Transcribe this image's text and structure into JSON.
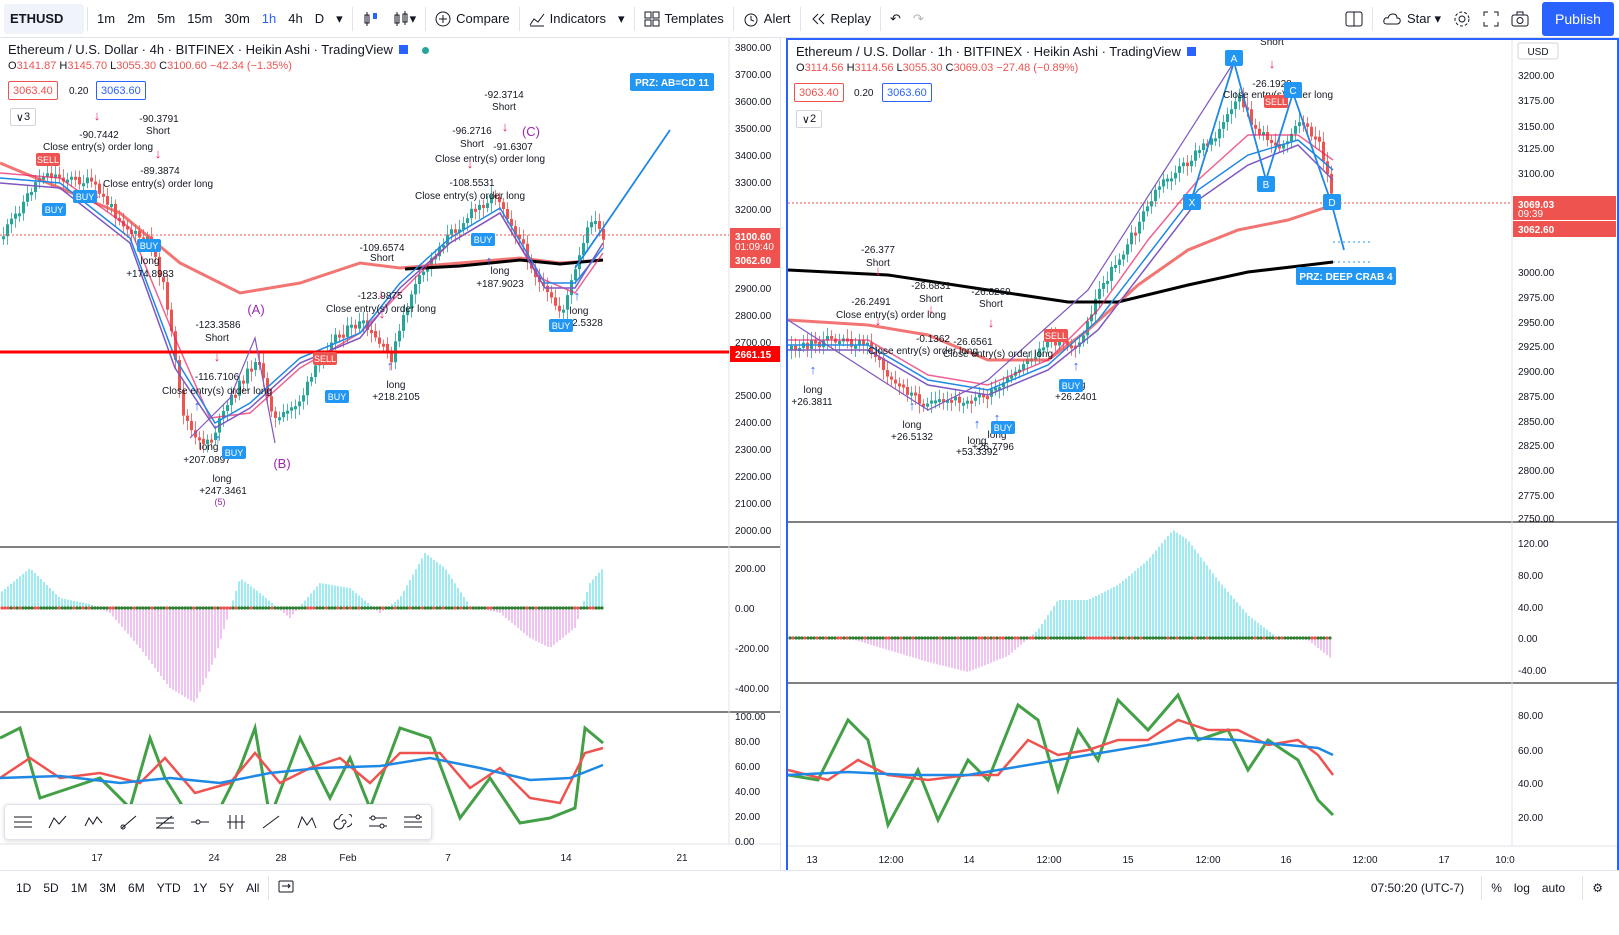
{
  "toolbar": {
    "symbol": "ETHUSD",
    "intervals": [
      "1m",
      "2m",
      "5m",
      "15m",
      "30m",
      "1h",
      "4h",
      "D"
    ],
    "active_interval": "1h",
    "compare": "Compare",
    "indicators": "Indicators",
    "templates": "Templates",
    "alert": "Alert",
    "replay": "Replay",
    "star": "Star",
    "publish": "Publish"
  },
  "left_chart": {
    "title": "Ethereum / U.S. Dollar · 4h · BITFINEX · Heikin Ashi · TradingView",
    "ohlc": {
      "o": "3141.87",
      "h": "3145.70",
      "l": "3055.30",
      "c": "3100.60",
      "chg": "−42.34 (−1.35%)"
    },
    "bid": "3063.40",
    "spread": "0.20",
    "ask": "3063.60",
    "count": "3",
    "price_axis": [
      "3800.00",
      "3700.00",
      "3600.00",
      "3500.00",
      "3400.00",
      "3300.00",
      "3200.00",
      "3100.60",
      "3062.60",
      "2900.00",
      "2800.00",
      "2700.00",
      "2661.15",
      "2500.00",
      "2400.00",
      "2300.00",
      "2200.00",
      "2100.00",
      "2000.00"
    ],
    "last_price": "3100.60",
    "countdown": "01:09:40",
    "ask_line": "3062.60",
    "hline_price": "2661.15",
    "osc_axis": [
      "200.00",
      "0.00",
      "-200.00",
      "-400.00"
    ],
    "rsi_axis": [
      "100.00",
      "80.00",
      "60.00",
      "40.00",
      "20.00",
      "0.00"
    ],
    "time_axis": [
      "17",
      "24",
      "28",
      "Feb",
      "7",
      "14",
      "21"
    ],
    "prz_label": "PRZ: AB=CD 11",
    "wave_labels": [
      "(A)",
      "(B)",
      "(C)",
      "(5)"
    ],
    "annotations": [
      {
        "text": "-90.7442"
      },
      {
        "text": "-90.3791"
      },
      {
        "text": "Short"
      },
      {
        "text": "Close entry(s) order long"
      },
      {
        "text": "-89.3874"
      },
      {
        "text": "Close entry(s) order long"
      },
      {
        "text": "long"
      },
      {
        "text": "+174.8983"
      },
      {
        "text": "-123.3586"
      },
      {
        "text": "Short"
      },
      {
        "text": "-116.7106"
      },
      {
        "text": "Close entry(s) order long"
      },
      {
        "text": "long"
      },
      {
        "text": "+207.0897"
      },
      {
        "text": "long"
      },
      {
        "text": "+247.3461"
      },
      {
        "text": "-109.6574"
      },
      {
        "text": "Short"
      },
      {
        "text": "-123.9875"
      },
      {
        "text": "Close entry(s) order long"
      },
      {
        "text": "long"
      },
      {
        "text": "+218.2105"
      },
      {
        "text": "-92.3714"
      },
      {
        "text": "Short"
      },
      {
        "text": "-96.2716"
      },
      {
        "text": "Short"
      },
      {
        "text": "-91.6307"
      },
      {
        "text": "Close entry(s) order long"
      },
      {
        "text": "-108.5531"
      },
      {
        "text": "Close entry(s) order long"
      },
      {
        "text": "long"
      },
      {
        "text": "+187.9023"
      },
      {
        "text": "long"
      },
      {
        "text": "+192.5328"
      }
    ],
    "signals": [
      "SELL",
      "BUY",
      "BUY",
      "BUY",
      "BUY",
      "SELL",
      "BUY",
      "BUY",
      "BUY"
    ]
  },
  "right_chart": {
    "title": "Ethereum / U.S. Dollar · 1h · BITFINEX · Heikin Ashi · TradingView",
    "ohlc": {
      "o": "3114.56",
      "h": "3114.56",
      "l": "3055.30",
      "c": "3069.03",
      "chg": "−27.48 (−0.89%)"
    },
    "bid": "3063.40",
    "spread": "0.20",
    "ask": "3063.60",
    "count": "2",
    "currency": "USD",
    "price_axis": [
      "3200.00",
      "3175.00",
      "3150.00",
      "3125.00",
      "3100.00",
      "3069.03",
      "3062.60",
      "3000.00",
      "2975.00",
      "2950.00",
      "2925.00",
      "2900.00",
      "2875.00",
      "2850.00",
      "2825.00",
      "2800.00",
      "2775.00",
      "2750.00"
    ],
    "last_price": "3069.03",
    "countdown": "09:39",
    "ask_line": "3062.60",
    "osc_axis": [
      "120.00",
      "80.00",
      "40.00",
      "0.00",
      "-40.00"
    ],
    "rsi_axis": [
      "80.00",
      "60.00",
      "40.00",
      "20.00"
    ],
    "time_axis": [
      "13",
      "12:00",
      "14",
      "12:00",
      "15",
      "12:00",
      "16",
      "12:00",
      "17",
      "10:0"
    ],
    "prz_label": "PRZ: DEEP CRAB 4",
    "points": [
      "X",
      "A",
      "B",
      "C",
      "D"
    ],
    "annotations": [
      {
        "text": "-26.377"
      },
      {
        "text": "Short"
      },
      {
        "text": "-26.2491"
      },
      {
        "text": "Close entry(s) order long"
      },
      {
        "text": "-26.6831"
      },
      {
        "text": "Short"
      },
      {
        "text": "-26.8269"
      },
      {
        "text": "Short"
      },
      {
        "text": "-0.1362"
      },
      {
        "text": "Close entry(s) order long"
      },
      {
        "text": "-26.6561"
      },
      {
        "text": "Close entry(s) order long"
      },
      {
        "text": "long"
      },
      {
        "text": "+26.3811"
      },
      {
        "text": "long"
      },
      {
        "text": "+26.5132"
      },
      {
        "text": "long"
      },
      {
        "text": "+53.3392"
      },
      {
        "text": "long"
      },
      {
        "text": "+26.7796"
      },
      {
        "text": "long"
      },
      {
        "text": "+26.2401"
      },
      {
        "text": "Short"
      },
      {
        "text": "-26.1928"
      },
      {
        "text": "Close entry(s) order long"
      }
    ],
    "signals": [
      "SELL",
      "BUY",
      "SELL",
      "BUY"
    ]
  },
  "bottom": {
    "ranges": [
      "1D",
      "5D",
      "1M",
      "3M",
      "6M",
      "YTD",
      "1Y",
      "5Y",
      "All"
    ],
    "time": "07:50:20 (UTC-7)",
    "pct": "%",
    "log": "log",
    "auto": "auto"
  },
  "colors": {
    "up": "#26a69a",
    "down": "#ef5350",
    "accent": "#2962ff",
    "ema_red": "#ef5350",
    "ema_black": "#000000",
    "rsi_green": "#43a047",
    "rsi_blue": "#2196f3"
  }
}
